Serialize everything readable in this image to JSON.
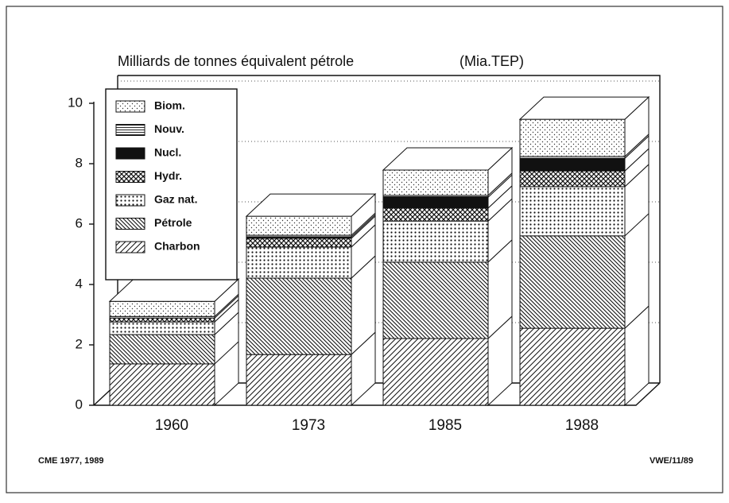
{
  "chart_data": {
    "type": "bar3d_stacked",
    "title": "Milliards de tonnes équivalent pétrole",
    "subtitle": "(Mia.TEP)",
    "source": "CME 1977, 1989",
    "credit": "VWE/11/89",
    "categories": [
      "1960",
      "1973",
      "1985",
      "1988"
    ],
    "series": [
      {
        "name": "Charbon",
        "pattern": "p-diag",
        "color": "#111111",
        "values": [
          1.37,
          1.68,
          2.21,
          2.55
        ]
      },
      {
        "name": "Pétrole",
        "pattern": "p-bdiag",
        "color": "#111111",
        "values": [
          0.97,
          2.53,
          2.53,
          3.06
        ]
      },
      {
        "name": "Gaz nat.",
        "pattern": "p-dots",
        "color": "#111111",
        "values": [
          0.42,
          1.03,
          1.36,
          1.63
        ]
      },
      {
        "name": "Hydr.",
        "pattern": "p-cross",
        "color": "#111111",
        "values": [
          0.13,
          0.29,
          0.43,
          0.52
        ]
      },
      {
        "name": "Nucl.",
        "pattern": "p-solid",
        "color": "#111111",
        "values": [
          0,
          0.05,
          0.36,
          0.42
        ]
      },
      {
        "name": "Nouv.",
        "pattern": "p-hlines",
        "color": "#111111",
        "values": [
          0.05,
          0.05,
          0.06,
          0.06
        ]
      },
      {
        "name": "Biom.",
        "pattern": "p-ldots",
        "color": "#111111",
        "values": [
          0.5,
          0.63,
          0.84,
          1.23
        ]
      }
    ],
    "ylim": [
      0,
      10
    ],
    "yticks": [
      0,
      2,
      4,
      6,
      8,
      10
    ],
    "grid": true,
    "legend": "upper left"
  }
}
